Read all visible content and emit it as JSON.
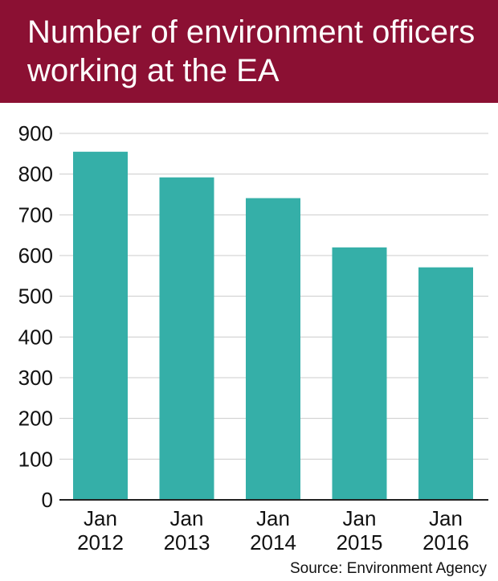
{
  "title": "Number of environment officers working at the EA",
  "source": "Source: Environment Agency",
  "colors": {
    "header": "#8b1033",
    "bar": "#35afa8",
    "grid": "#cccccc",
    "axis": "#222222"
  },
  "chart_data": {
    "type": "bar",
    "title": "Number of environment officers working at the EA",
    "xlabel": "",
    "ylabel": "",
    "categories": [
      [
        "Jan",
        "2012"
      ],
      [
        "Jan",
        "2013"
      ],
      [
        "Jan",
        "2014"
      ],
      [
        "Jan",
        "2015"
      ],
      [
        "Jan",
        "2016"
      ]
    ],
    "values": [
      855,
      792,
      741,
      620,
      571
    ],
    "ylim": [
      0,
      900
    ],
    "yticks": [
      0,
      100,
      200,
      300,
      400,
      500,
      600,
      700,
      800,
      900
    ],
    "grid": true,
    "legend": "none"
  }
}
